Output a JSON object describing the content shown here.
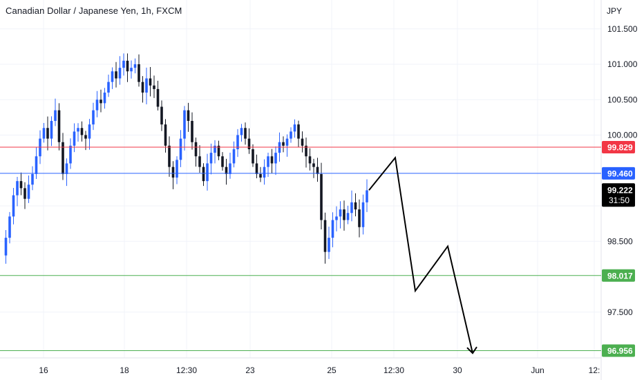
{
  "header": {
    "symbol_title": "Canadian Dollar / Japanese Yen, 1h, FXCM",
    "currency": "JPY"
  },
  "colors": {
    "up_candle": "#2962ff",
    "down_candle": "#131722",
    "resistance_line": "#f23645",
    "pivot_line": "#2962ff",
    "support_line": "#4caf50",
    "projection": "#000000",
    "grid": "#f0f3fa",
    "axis_text": "#131722"
  },
  "chart_data": {
    "type": "candlestick",
    "title": "Canadian Dollar / Japanese Yen, 1h, FXCM",
    "y_axis_unit": "JPY",
    "y_ticks": [
      "101.500",
      "101.000",
      "100.500",
      "100.000",
      "98.500",
      "97.500"
    ],
    "x_ticks": [
      "16",
      "18",
      "12:30",
      "23",
      "25",
      "12:30",
      "30",
      "Jun",
      "12:"
    ],
    "ylim": [
      96.9,
      101.9
    ],
    "price_path": [
      98.3,
      98.55,
      98.85,
      99.15,
      99.35,
      99.25,
      99.1,
      99.3,
      99.45,
      99.7,
      99.95,
      100.1,
      99.95,
      100.2,
      100.35,
      99.9,
      99.45,
      99.6,
      99.85,
      100.05,
      100.1,
      100.0,
      99.95,
      100.15,
      100.35,
      100.5,
      100.45,
      100.6,
      100.75,
      100.9,
      100.8,
      100.95,
      101.05,
      100.9,
      100.95,
      101.0,
      100.75,
      100.6,
      100.8,
      100.7,
      100.65,
      100.4,
      100.15,
      99.85,
      99.55,
      99.4,
      99.65,
      99.95,
      100.35,
      100.2,
      99.9,
      99.7,
      99.55,
      99.35,
      99.6,
      99.75,
      99.85,
      99.7,
      99.55,
      99.45,
      99.6,
      99.8,
      100.0,
      100.1,
      99.95,
      99.8,
      99.6,
      99.45,
      99.4,
      99.55,
      99.7,
      99.6,
      99.75,
      99.9,
      99.85,
      99.95,
      100.05,
      100.15,
      99.95,
      99.85,
      99.7,
      99.6,
      99.55,
      99.45,
      98.8,
      98.35,
      98.55,
      98.8,
      98.85,
      98.95,
      98.8,
      98.9,
      99.05,
      98.95,
      98.7,
      99.05,
      99.22
    ],
    "horizontal_levels": [
      {
        "value": 99.829,
        "label": "99.829",
        "role": "resistance"
      },
      {
        "value": 99.46,
        "label": "99.460",
        "role": "pivot"
      },
      {
        "value": 98.017,
        "label": "98.017",
        "role": "support"
      },
      {
        "value": 96.956,
        "label": "96.956",
        "role": "support"
      }
    ],
    "last_price": {
      "value": "99.222",
      "countdown": "31:50"
    },
    "projection_path_prices": [
      99.222,
      99.68,
      97.8,
      98.43,
      96.92
    ],
    "grid": true
  }
}
